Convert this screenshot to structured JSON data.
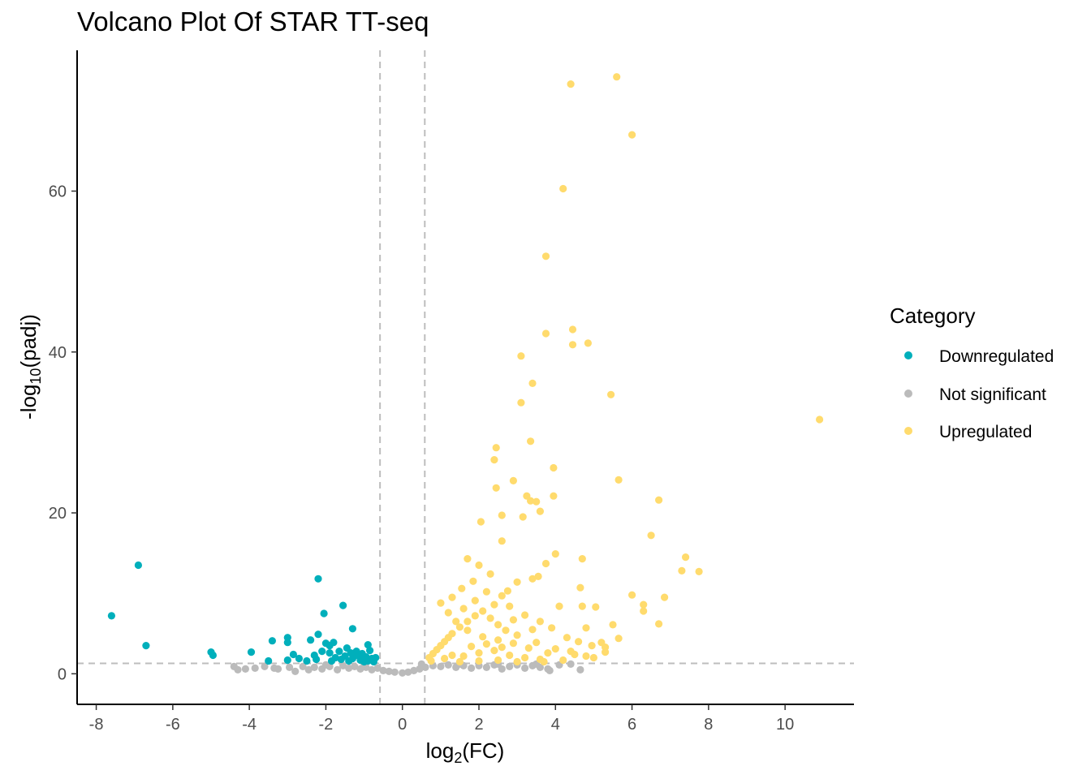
{
  "chart_data": {
    "type": "scatter",
    "title": "Volcano Plot Of STAR TT-seq",
    "xlabel": {
      "prefix": "log",
      "sub": "2",
      "suffix": "(FC)"
    },
    "ylabel": {
      "prefix": "-log",
      "sub": "10",
      "suffix": "(padj)"
    },
    "xlim": [
      -8.5,
      11.8
    ],
    "ylim": [
      -3.8,
      77.5
    ],
    "x_ticks": [
      -8,
      -6,
      -4,
      -2,
      0,
      2,
      4,
      6,
      8,
      10
    ],
    "y_ticks": [
      0,
      20,
      40,
      60
    ],
    "reference_lines": {
      "vertical": [
        -0.585,
        0.585
      ],
      "horizontal": [
        1.3
      ],
      "style": "dashed",
      "color": "#bdbdbd"
    },
    "grid": false,
    "legend": {
      "title": "Category",
      "position": "right",
      "entries": [
        {
          "label": "Downregulated",
          "color": "#00AFBB"
        },
        {
          "label": "Not significant",
          "color": "#BBBBBB"
        },
        {
          "label": "Upregulated",
          "color": "#FFDB6D"
        }
      ]
    },
    "series": [
      {
        "name": "Downregulated",
        "color": "#00AFBB",
        "points": [
          [
            -7.6,
            7.2
          ],
          [
            -6.9,
            13.5
          ],
          [
            -6.7,
            3.5
          ],
          [
            -5.0,
            2.7
          ],
          [
            -4.95,
            2.3
          ],
          [
            -3.95,
            2.7
          ],
          [
            -3.4,
            4.1
          ],
          [
            -3.0,
            4.5
          ],
          [
            -3.0,
            3.9
          ],
          [
            -2.85,
            2.4
          ],
          [
            -2.2,
            11.8
          ],
          [
            -2.2,
            4.9
          ],
          [
            -2.05,
            7.5
          ],
          [
            -2.0,
            3.8
          ],
          [
            -1.9,
            3.5
          ],
          [
            -1.55,
            8.5
          ],
          [
            -1.3,
            5.6
          ],
          [
            -2.4,
            4.2
          ],
          [
            -1.8,
            3.9
          ],
          [
            -1.45,
            3.2
          ],
          [
            -1.2,
            2.8
          ],
          [
            -0.9,
            3.6
          ],
          [
            -0.85,
            2.9
          ],
          [
            -3.5,
            1.6
          ],
          [
            -3.0,
            1.7
          ],
          [
            -2.7,
            1.9
          ],
          [
            -2.5,
            1.6
          ],
          [
            -2.3,
            2.3
          ],
          [
            -2.1,
            2.8
          ],
          [
            -1.9,
            2.6
          ],
          [
            -1.75,
            2.0
          ],
          [
            -1.6,
            1.8
          ],
          [
            -1.5,
            2.2
          ],
          [
            -1.4,
            1.6
          ],
          [
            -1.3,
            1.9
          ],
          [
            -1.2,
            2.3
          ],
          [
            -1.1,
            1.7
          ],
          [
            -1.0,
            1.5
          ],
          [
            -0.95,
            2.1
          ],
          [
            -0.9,
            1.6
          ],
          [
            -0.8,
            1.9
          ],
          [
            -0.75,
            1.5
          ],
          [
            -1.65,
            2.8
          ],
          [
            -2.25,
            1.8
          ],
          [
            -1.05,
            2.5
          ],
          [
            -0.7,
            2.0
          ],
          [
            -1.85,
            1.6
          ],
          [
            -1.35,
            2.6
          ]
        ]
      },
      {
        "name": "Not significant",
        "color": "#BBBBBB",
        "points": [
          [
            -4.4,
            0.9
          ],
          [
            -4.3,
            0.5
          ],
          [
            -4.1,
            0.6
          ],
          [
            -3.85,
            0.7
          ],
          [
            -3.6,
            0.9
          ],
          [
            -3.35,
            0.7
          ],
          [
            -3.25,
            0.6
          ],
          [
            -2.95,
            0.8
          ],
          [
            -2.8,
            0.3
          ],
          [
            -2.6,
            0.9
          ],
          [
            -2.45,
            0.5
          ],
          [
            -2.3,
            0.8
          ],
          [
            -2.1,
            0.6
          ],
          [
            -1.9,
            0.9
          ],
          [
            -1.7,
            0.5
          ],
          [
            -1.55,
            1.0
          ],
          [
            -1.4,
            0.7
          ],
          [
            -1.25,
            0.9
          ],
          [
            -1.1,
            0.6
          ],
          [
            -0.95,
            0.8
          ],
          [
            -0.8,
            0.5
          ],
          [
            -0.65,
            0.7
          ],
          [
            -0.5,
            0.4
          ],
          [
            -0.35,
            0.3
          ],
          [
            -0.2,
            0.2
          ],
          [
            0.0,
            0.1
          ],
          [
            0.15,
            0.2
          ],
          [
            0.3,
            0.4
          ],
          [
            0.45,
            0.6
          ],
          [
            0.6,
            0.8
          ],
          [
            0.8,
            1.0
          ],
          [
            1.0,
            0.9
          ],
          [
            1.2,
            1.1
          ],
          [
            1.4,
            0.8
          ],
          [
            1.6,
            1.0
          ],
          [
            1.8,
            0.7
          ],
          [
            2.0,
            1.0
          ],
          [
            2.2,
            0.8
          ],
          [
            2.4,
            1.1
          ],
          [
            2.6,
            0.6
          ],
          [
            2.8,
            0.9
          ],
          [
            3.0,
            1.1
          ],
          [
            3.2,
            0.7
          ],
          [
            3.4,
            1.0
          ],
          [
            3.6,
            0.8
          ],
          [
            3.8,
            0.6
          ],
          [
            3.85,
            0.4
          ],
          [
            4.1,
            1.1
          ],
          [
            4.4,
            1.2
          ],
          [
            4.65,
            0.5
          ],
          [
            -2.0,
            1.1
          ],
          [
            -1.0,
            1.2
          ],
          [
            0.5,
            1.2
          ],
          [
            1.5,
            1.2
          ],
          [
            2.5,
            1.2
          ],
          [
            3.5,
            1.2
          ]
        ]
      },
      {
        "name": "Upregulated",
        "color": "#FFDB6D",
        "points": [
          [
            4.4,
            73.3
          ],
          [
            5.6,
            74.2
          ],
          [
            6.0,
            67.0
          ],
          [
            4.2,
            60.3
          ],
          [
            3.75,
            51.9
          ],
          [
            4.45,
            42.8
          ],
          [
            3.75,
            42.3
          ],
          [
            4.85,
            41.1
          ],
          [
            4.45,
            40.9
          ],
          [
            3.1,
            39.5
          ],
          [
            3.4,
            36.1
          ],
          [
            5.45,
            34.7
          ],
          [
            3.1,
            33.7
          ],
          [
            10.9,
            31.6
          ],
          [
            3.35,
            28.9
          ],
          [
            2.45,
            28.1
          ],
          [
            2.4,
            26.6
          ],
          [
            3.95,
            25.6
          ],
          [
            2.9,
            24.0
          ],
          [
            5.65,
            24.1
          ],
          [
            2.45,
            23.1
          ],
          [
            3.95,
            22.1
          ],
          [
            3.25,
            22.1
          ],
          [
            3.35,
            21.5
          ],
          [
            3.5,
            21.4
          ],
          [
            6.7,
            21.6
          ],
          [
            3.6,
            20.2
          ],
          [
            2.6,
            19.7
          ],
          [
            3.15,
            19.5
          ],
          [
            6.5,
            17.2
          ],
          [
            2.05,
            18.9
          ],
          [
            2.6,
            16.5
          ],
          [
            7.4,
            14.5
          ],
          [
            7.3,
            12.8
          ],
          [
            7.75,
            12.7
          ],
          [
            4.0,
            14.9
          ],
          [
            4.7,
            14.3
          ],
          [
            3.75,
            13.7
          ],
          [
            2.0,
            13.5
          ],
          [
            1.7,
            14.3
          ],
          [
            6.0,
            9.8
          ],
          [
            6.3,
            8.6
          ],
          [
            6.85,
            9.5
          ],
          [
            6.3,
            7.8
          ],
          [
            5.05,
            8.3
          ],
          [
            4.65,
            10.7
          ],
          [
            4.1,
            8.4
          ],
          [
            4.7,
            8.4
          ],
          [
            4.8,
            5.7
          ],
          [
            5.5,
            6.1
          ],
          [
            6.7,
            6.2
          ],
          [
            5.65,
            4.4
          ],
          [
            5.2,
            3.9
          ],
          [
            5.3,
            3.3
          ],
          [
            3.55,
            12.1
          ],
          [
            3.4,
            11.8
          ],
          [
            3.0,
            11.4
          ],
          [
            2.6,
            9.7
          ],
          [
            2.8,
            8.4
          ],
          [
            3.2,
            7.3
          ],
          [
            3.6,
            6.5
          ],
          [
            3.9,
            5.7
          ],
          [
            4.3,
            4.5
          ],
          [
            4.6,
            4.0
          ],
          [
            4.95,
            3.5
          ],
          [
            4.4,
            2.8
          ],
          [
            3.8,
            2.6
          ],
          [
            3.3,
            3.2
          ],
          [
            2.9,
            3.8
          ],
          [
            2.5,
            4.2
          ],
          [
            2.1,
            4.6
          ],
          [
            1.7,
            5.4
          ],
          [
            1.4,
            6.5
          ],
          [
            1.2,
            7.6
          ],
          [
            1.0,
            8.8
          ],
          [
            1.3,
            9.5
          ],
          [
            1.55,
            10.6
          ],
          [
            1.85,
            11.5
          ],
          [
            2.3,
            12.4
          ],
          [
            2.75,
            10.3
          ],
          [
            0.7,
            2.0
          ],
          [
            0.8,
            2.5
          ],
          [
            0.9,
            3.0
          ],
          [
            1.0,
            3.5
          ],
          [
            1.1,
            4.0
          ],
          [
            1.2,
            4.5
          ],
          [
            1.3,
            5.0
          ],
          [
            1.5,
            5.8
          ],
          [
            1.7,
            6.5
          ],
          [
            1.9,
            7.2
          ],
          [
            2.1,
            7.8
          ],
          [
            2.3,
            6.9
          ],
          [
            2.5,
            6.1
          ],
          [
            2.7,
            5.4
          ],
          [
            3.0,
            4.8
          ],
          [
            3.5,
            3.9
          ],
          [
            4.0,
            3.1
          ],
          [
            4.5,
            2.4
          ],
          [
            5.0,
            2.0
          ],
          [
            1.6,
            2.2
          ],
          [
            2.0,
            2.6
          ],
          [
            2.4,
            2.9
          ],
          [
            2.8,
            2.3
          ],
          [
            3.2,
            2.0
          ],
          [
            3.6,
            1.8
          ],
          [
            4.2,
            1.7
          ],
          [
            1.3,
            2.3
          ],
          [
            1.8,
            3.4
          ],
          [
            2.2,
            3.7
          ],
          [
            2.6,
            3.3
          ],
          [
            0.75,
            1.6
          ],
          [
            1.1,
            1.9
          ],
          [
            1.5,
            1.5
          ],
          [
            2.0,
            1.6
          ],
          [
            2.5,
            1.7
          ],
          [
            3.0,
            1.5
          ],
          [
            3.7,
            1.5
          ],
          [
            4.8,
            2.2
          ],
          [
            5.3,
            2.7
          ],
          [
            2.2,
            10.2
          ],
          [
            1.9,
            9.1
          ],
          [
            2.4,
            8.6
          ],
          [
            1.6,
            8.1
          ],
          [
            2.9,
            6.7
          ],
          [
            3.4,
            5.5
          ]
        ]
      }
    ]
  }
}
